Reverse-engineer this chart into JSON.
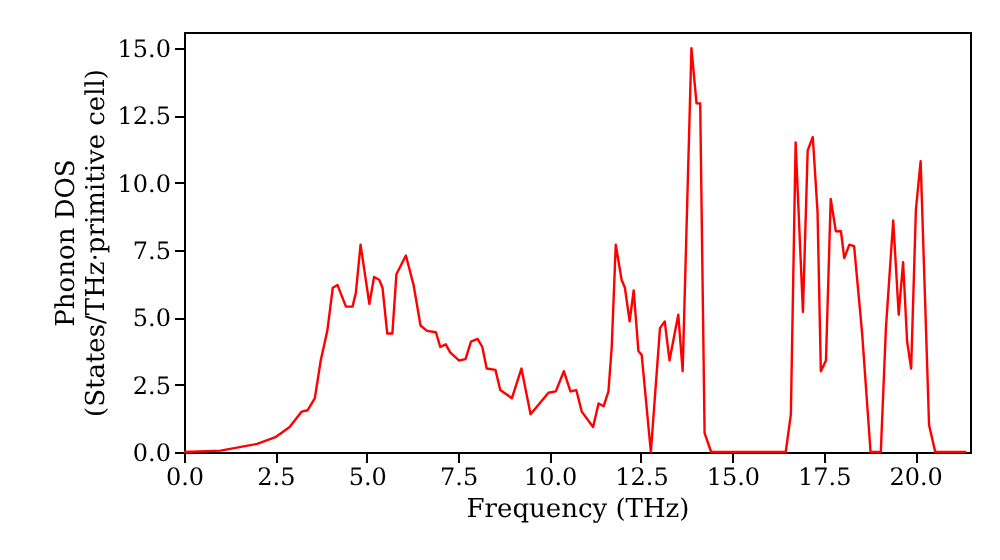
{
  "chart_data": {
    "type": "line",
    "xlabel": "Frequency (THz)",
    "ylabel": "Phonon DOS\n(States/THz·primitive cell)",
    "xlim": [
      0,
      21.5
    ],
    "ylim": [
      0,
      15.6
    ],
    "xticks": [
      {
        "value": 0,
        "label": "0.0"
      },
      2.5,
      {
        "value": 5,
        "label": "5.0"
      },
      7.5,
      {
        "value": 10,
        "label": "10.0"
      },
      12.5,
      {
        "value": 15,
        "label": "15.0"
      },
      17.5,
      {
        "value": 20,
        "label": "20.0"
      }
    ],
    "yticks": [
      {
        "value": 0,
        "label": "0.0"
      },
      2.5,
      {
        "value": 5,
        "label": "5.0"
      },
      7.5,
      {
        "value": 10,
        "label": "10.0"
      },
      12.5,
      {
        "value": 15,
        "label": "15.0"
      }
    ],
    "grid": false,
    "marker": "none",
    "line_style": "solid",
    "series": [
      {
        "color": "#ff0000",
        "x": [
          0,
          1,
          2,
          2.5,
          2.89,
          3.22,
          3.38,
          3.58,
          3.74,
          3.92,
          4.07,
          4.2,
          4.43,
          4.61,
          4.7,
          4.83,
          5.07,
          5.2,
          5.34,
          5.43,
          5.56,
          5.7,
          5.81,
          6.07,
          6.28,
          6.47,
          6.65,
          6.89,
          7.01,
          7.16,
          7.28,
          7.52,
          7.7,
          7.85,
          8.03,
          8.16,
          8.28,
          8.52,
          8.65,
          8.97,
          9.23,
          9.48,
          9.97,
          10.17,
          10.39,
          10.57,
          10.73,
          10.88,
          11.19,
          11.34,
          11.48,
          11.61,
          11.7,
          11.81,
          11.97,
          12.06,
          12.19,
          12.3,
          12.43,
          12.52,
          12.77,
          13.02,
          13.15,
          13.28,
          13.52,
          13.64,
          13.88,
          14.02,
          14.12,
          14.24,
          14.42,
          16.46,
          16.6,
          16.73,
          16.93,
          17.06,
          17.2,
          17.33,
          17.42,
          17.56,
          17.69,
          17.83,
          17.97,
          18.06,
          18.2,
          18.33,
          18.55,
          18.78,
          19.06,
          19.2,
          19.4,
          19.55,
          19.67,
          19.78,
          19.89,
          20.02,
          20.15,
          20.38,
          20.55,
          21.4
        ],
        "values": [
          0,
          0.05,
          0.3,
          0.55,
          0.93,
          1.5,
          1.55,
          2.0,
          3.4,
          4.5,
          6.1,
          6.2,
          5.4,
          5.4,
          5.9,
          7.7,
          5.5,
          6.5,
          6.4,
          6.1,
          4.4,
          4.4,
          6.6,
          7.3,
          6.2,
          4.7,
          4.5,
          4.45,
          3.9,
          4.0,
          3.7,
          3.4,
          3.45,
          4.1,
          4.2,
          3.9,
          3.1,
          3.05,
          2.3,
          2.0,
          3.1,
          1.4,
          2.2,
          2.25,
          3.0,
          2.25,
          2.3,
          1.5,
          0.93,
          1.8,
          1.7,
          2.25,
          3.9,
          7.7,
          6.4,
          6.1,
          4.85,
          6.0,
          3.75,
          3.6,
          0,
          4.6,
          4.85,
          3.4,
          5.1,
          3.0,
          15.0,
          12.95,
          12.95,
          0.7,
          0,
          0,
          1.4,
          11.5,
          5.2,
          11.2,
          11.7,
          8.9,
          3.0,
          3.4,
          9.4,
          8.2,
          8.2,
          7.2,
          7.7,
          7.65,
          4.4,
          0,
          0,
          4.6,
          8.6,
          5.1,
          7.05,
          4.1,
          3.1,
          9.0,
          10.8,
          1.0,
          0,
          0
        ]
      }
    ]
  }
}
